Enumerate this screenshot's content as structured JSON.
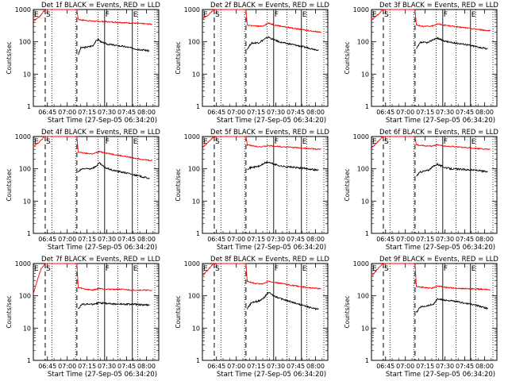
{
  "chart_data": {
    "type": "line",
    "panels": [
      {
        "id": "1f",
        "title": "Det 1f BLACK = Events, RED = LLD",
        "xlabel": "Start Time (27-Sep-05 06:34:20)",
        "red": [
          [
            0,
            440
          ],
          [
            5,
            620
          ],
          [
            8,
            900
          ],
          [
            10,
            1000
          ],
          [
            20,
            1000
          ],
          [
            33,
            1000
          ],
          [
            34,
            500
          ],
          [
            37,
            470
          ],
          [
            45,
            440
          ],
          [
            60,
            410
          ],
          [
            75,
            380
          ],
          [
            85,
            360
          ],
          [
            90,
            350
          ]
        ],
        "black": [
          [
            34,
            40
          ],
          [
            36,
            65
          ],
          [
            40,
            68
          ],
          [
            45,
            75
          ],
          [
            47,
            100
          ],
          [
            49,
            120
          ],
          [
            52,
            95
          ],
          [
            56,
            85
          ],
          [
            62,
            78
          ],
          [
            70,
            70
          ],
          [
            78,
            60
          ],
          [
            85,
            55
          ],
          [
            88,
            52
          ]
        ]
      },
      {
        "id": "2f",
        "title": "Det 2f BLACK = Events, RED = LLD",
        "xlabel": "Start Time (27-Sep-05 06:34:20)",
        "red": [
          [
            0,
            500
          ],
          [
            5,
            700
          ],
          [
            8,
            950
          ],
          [
            10,
            1000
          ],
          [
            20,
            1000
          ],
          [
            33,
            1000
          ],
          [
            34,
            330
          ],
          [
            40,
            310
          ],
          [
            45,
            300
          ],
          [
            50,
            380
          ],
          [
            55,
            330
          ],
          [
            65,
            280
          ],
          [
            75,
            240
          ],
          [
            85,
            210
          ],
          [
            90,
            200
          ]
        ],
        "black": [
          [
            34,
            60
          ],
          [
            37,
            90
          ],
          [
            43,
            95
          ],
          [
            47,
            120
          ],
          [
            50,
            140
          ],
          [
            54,
            115
          ],
          [
            60,
            95
          ],
          [
            70,
            80
          ],
          [
            80,
            65
          ],
          [
            88,
            55
          ]
        ]
      },
      {
        "id": "3f",
        "title": "Det 3f BLACK = Events, RED = LLD",
        "xlabel": "Start Time (27-Sep-05 06:34:20)",
        "red": [
          [
            0,
            480
          ],
          [
            5,
            700
          ],
          [
            8,
            950
          ],
          [
            10,
            1000
          ],
          [
            20,
            1000
          ],
          [
            33,
            1000
          ],
          [
            34,
            330
          ],
          [
            40,
            300
          ],
          [
            45,
            300
          ],
          [
            50,
            360
          ],
          [
            55,
            330
          ],
          [
            65,
            290
          ],
          [
            75,
            260
          ],
          [
            85,
            230
          ],
          [
            90,
            220
          ]
        ],
        "black": [
          [
            34,
            60
          ],
          [
            37,
            95
          ],
          [
            43,
            95
          ],
          [
            47,
            120
          ],
          [
            50,
            130
          ],
          [
            54,
            110
          ],
          [
            60,
            95
          ],
          [
            70,
            85
          ],
          [
            80,
            70
          ],
          [
            88,
            60
          ]
        ]
      },
      {
        "id": "4f",
        "title": "Det 4f BLACK = Events, RED = LLD",
        "xlabel": "Start Time (27-Sep-05 06:34:20)",
        "red": [
          [
            0,
            500
          ],
          [
            5,
            700
          ],
          [
            8,
            950
          ],
          [
            10,
            1000
          ],
          [
            20,
            1000
          ],
          [
            33,
            1000
          ],
          [
            34,
            330
          ],
          [
            40,
            300
          ],
          [
            45,
            290
          ],
          [
            50,
            340
          ],
          [
            55,
            310
          ],
          [
            65,
            260
          ],
          [
            75,
            220
          ],
          [
            85,
            190
          ],
          [
            90,
            180
          ]
        ],
        "black": [
          [
            34,
            80
          ],
          [
            37,
            100
          ],
          [
            43,
            100
          ],
          [
            47,
            115
          ],
          [
            50,
            150
          ],
          [
            54,
            110
          ],
          [
            60,
            90
          ],
          [
            70,
            75
          ],
          [
            80,
            60
          ],
          [
            88,
            50
          ]
        ]
      },
      {
        "id": "5f",
        "title": "Det 5f BLACK = Events, RED = LLD",
        "xlabel": "Start Time (27-Sep-05 06:34:20)",
        "red": [
          [
            0,
            450
          ],
          [
            5,
            700
          ],
          [
            8,
            950
          ],
          [
            10,
            1000
          ],
          [
            20,
            1000
          ],
          [
            33,
            1000
          ],
          [
            34,
            550
          ],
          [
            40,
            500
          ],
          [
            45,
            480
          ],
          [
            50,
            520
          ],
          [
            55,
            500
          ],
          [
            65,
            470
          ],
          [
            75,
            440
          ],
          [
            85,
            410
          ],
          [
            90,
            400
          ]
        ],
        "black": [
          [
            34,
            100
          ],
          [
            37,
            110
          ],
          [
            43,
            120
          ],
          [
            47,
            150
          ],
          [
            50,
            160
          ],
          [
            54,
            140
          ],
          [
            60,
            120
          ],
          [
            70,
            110
          ],
          [
            80,
            100
          ],
          [
            88,
            90
          ]
        ]
      },
      {
        "id": "6f",
        "title": "Det 6f BLACK = Events, RED = LLD",
        "xlabel": "Start Time (27-Sep-05 06:34:20)",
        "red": [
          [
            0,
            450
          ],
          [
            5,
            700
          ],
          [
            8,
            950
          ],
          [
            10,
            1000
          ],
          [
            20,
            1000
          ],
          [
            33,
            1000
          ],
          [
            34,
            550
          ],
          [
            40,
            520
          ],
          [
            45,
            500
          ],
          [
            50,
            560
          ],
          [
            55,
            510
          ],
          [
            65,
            480
          ],
          [
            75,
            440
          ],
          [
            85,
            410
          ],
          [
            90,
            400
          ]
        ],
        "black": [
          [
            34,
            60
          ],
          [
            37,
            80
          ],
          [
            43,
            90
          ],
          [
            47,
            120
          ],
          [
            50,
            140
          ],
          [
            54,
            115
          ],
          [
            60,
            100
          ],
          [
            70,
            95
          ],
          [
            80,
            90
          ],
          [
            88,
            80
          ]
        ]
      },
      {
        "id": "7f",
        "title": "Det 7f BLACK = Events, RED = LLD",
        "xlabel": "Start Time (27-Sep-05 06:34:20)",
        "red": [
          [
            0,
            120
          ],
          [
            3,
            300
          ],
          [
            6,
            700
          ],
          [
            9,
            1000
          ],
          [
            20,
            1000
          ],
          [
            33,
            1000
          ],
          [
            34,
            180
          ],
          [
            40,
            160
          ],
          [
            45,
            150
          ],
          [
            50,
            170
          ],
          [
            55,
            160
          ],
          [
            65,
            160
          ],
          [
            75,
            150
          ],
          [
            85,
            150
          ],
          [
            90,
            145
          ]
        ],
        "black": [
          [
            34,
            40
          ],
          [
            37,
            55
          ],
          [
            45,
            55
          ],
          [
            50,
            60
          ],
          [
            55,
            58
          ],
          [
            65,
            55
          ],
          [
            75,
            55
          ],
          [
            85,
            52
          ],
          [
            88,
            50
          ]
        ]
      },
      {
        "id": "8f",
        "title": "Det 8f BLACK = Events, RED = LLD",
        "xlabel": "Start Time (27-Sep-05 06:34:20)",
        "red": [
          [
            0,
            400
          ],
          [
            5,
            700
          ],
          [
            8,
            950
          ],
          [
            10,
            1000
          ],
          [
            20,
            1000
          ],
          [
            33,
            1000
          ],
          [
            34,
            280
          ],
          [
            40,
            240
          ],
          [
            45,
            230
          ],
          [
            50,
            280
          ],
          [
            55,
            260
          ],
          [
            65,
            220
          ],
          [
            75,
            190
          ],
          [
            85,
            170
          ],
          [
            90,
            165
          ]
        ],
        "black": [
          [
            34,
            40
          ],
          [
            37,
            60
          ],
          [
            43,
            70
          ],
          [
            47,
            90
          ],
          [
            50,
            130
          ],
          [
            54,
            100
          ],
          [
            60,
            80
          ],
          [
            70,
            60
          ],
          [
            80,
            45
          ],
          [
            88,
            38
          ]
        ]
      },
      {
        "id": "9f",
        "title": "Det 9f BLACK = Events, RED = LLD",
        "xlabel": "Start Time (27-Sep-05 06:34:20)",
        "red": [
          [
            0,
            400
          ],
          [
            5,
            700
          ],
          [
            8,
            950
          ],
          [
            10,
            1000
          ],
          [
            20,
            1000
          ],
          [
            33,
            1000
          ],
          [
            34,
            200
          ],
          [
            40,
            180
          ],
          [
            45,
            170
          ],
          [
            50,
            200
          ],
          [
            55,
            185
          ],
          [
            65,
            170
          ],
          [
            75,
            165
          ],
          [
            85,
            160
          ],
          [
            90,
            150
          ]
        ],
        "black": [
          [
            34,
            30
          ],
          [
            37,
            45
          ],
          [
            43,
            50
          ],
          [
            47,
            55
          ],
          [
            50,
            80
          ],
          [
            54,
            75
          ],
          [
            60,
            70
          ],
          [
            70,
            60
          ],
          [
            80,
            50
          ],
          [
            88,
            40
          ]
        ]
      }
    ],
    "ylabel": "Counts/sec",
    "ylim": [
      1,
      1000
    ],
    "yscale": "log",
    "yticks": [
      "1",
      "10",
      "100",
      "1000"
    ],
    "xlim_minutes": [
      0,
      95
    ],
    "xticks": [
      "06:45",
      "07:00",
      "07:15",
      "07:30",
      "07:45",
      "08:00"
    ],
    "markers": [
      {
        "label": "E",
        "position": 0
      },
      {
        "label": "S",
        "position": 9
      },
      {
        "label": "F",
        "position": 54
      },
      {
        "label": "E",
        "position": 75
      }
    ],
    "colors": {
      "events": "#000000",
      "lld": "#ff0000"
    }
  }
}
